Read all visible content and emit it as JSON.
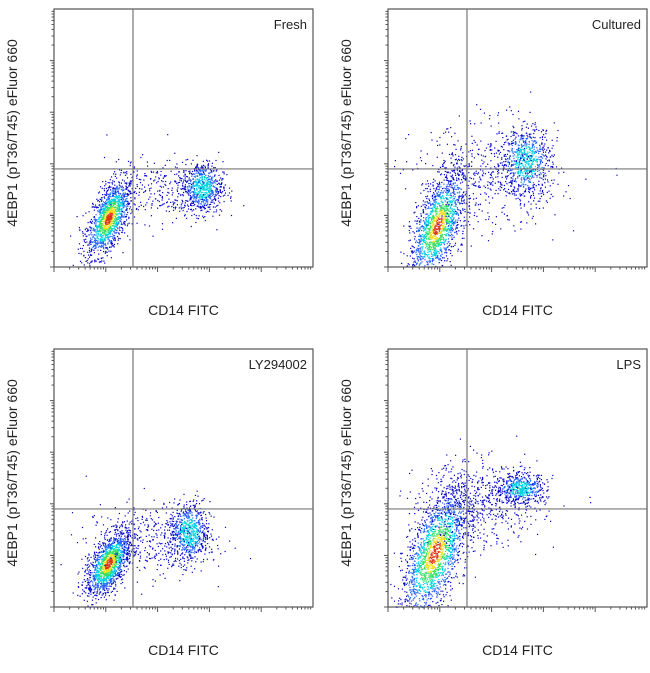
{
  "chart_data": [
    {
      "type": "scatter",
      "title": "Fresh",
      "xlabel": "CD14 FITC",
      "ylabel": "4EBP1 (pT36/T45) eFluor 660",
      "xscale": "log",
      "yscale": "log",
      "xlim": [
        0,
        100
      ],
      "ylim": [
        0,
        100
      ],
      "grid": false,
      "gates": {
        "x": 30.5,
        "y": 38
      },
      "populations": [
        {
          "x": 21,
          "y": 19,
          "sx": 4,
          "sy": 7,
          "n": 1400
        },
        {
          "x": 57,
          "y": 31,
          "sx": 4,
          "sy": 5,
          "n": 700
        },
        {
          "x": 40,
          "y": 30,
          "sx": 10,
          "sy": 6,
          "n": 250
        }
      ]
    },
    {
      "type": "scatter",
      "title": "Cultured",
      "xlabel": "CD14 FITC",
      "ylabel": "4EBP1 (pT36/T45) eFluor 660",
      "xscale": "log",
      "yscale": "log",
      "xlim": [
        0,
        100
      ],
      "ylim": [
        0,
        100
      ],
      "grid": false,
      "gates": {
        "x": 30.5,
        "y": 38
      },
      "populations": [
        {
          "x": 19,
          "y": 16,
          "sx": 5,
          "sy": 10,
          "n": 1500
        },
        {
          "x": 53,
          "y": 41,
          "sx": 5,
          "sy": 7,
          "n": 700
        },
        {
          "x": 38,
          "y": 35,
          "sx": 14,
          "sy": 10,
          "n": 500
        }
      ]
    },
    {
      "type": "scatter",
      "title": "LY294002",
      "xlabel": "CD14 FITC",
      "ylabel": "4EBP1 (pT36/T45) eFluor 660",
      "xscale": "log",
      "yscale": "log",
      "xlim": [
        0,
        100
      ],
      "ylim": [
        0,
        100
      ],
      "grid": false,
      "gates": {
        "x": 30.5,
        "y": 38
      },
      "populations": [
        {
          "x": 21,
          "y": 17,
          "sx": 4,
          "sy": 6,
          "n": 1400
        },
        {
          "x": 52,
          "y": 29,
          "sx": 4,
          "sy": 6,
          "n": 700
        },
        {
          "x": 36,
          "y": 26,
          "sx": 12,
          "sy": 7,
          "n": 350
        }
      ]
    },
    {
      "type": "scatter",
      "title": "LPS",
      "xlabel": "CD14 FITC",
      "ylabel": "4EBP1 (pT36/T45) eFluor 660",
      "xscale": "log",
      "yscale": "log",
      "xlim": [
        0,
        100
      ],
      "ylim": [
        0,
        100
      ],
      "grid": false,
      "gates": {
        "x": 30.5,
        "y": 38
      },
      "populations": [
        {
          "x": 18,
          "y": 21,
          "sx": 6,
          "sy": 12,
          "n": 1800
        },
        {
          "x": 51,
          "y": 46,
          "sx": 5,
          "sy": 3,
          "n": 500
        },
        {
          "x": 35,
          "y": 40,
          "sx": 12,
          "sy": 8,
          "n": 600
        }
      ]
    }
  ],
  "colors": {
    "gate": "#777777",
    "frame": "#555555",
    "density": [
      "#0000c8",
      "#2060ff",
      "#00d0e0",
      "#30e060",
      "#f0e020",
      "#e03010"
    ]
  }
}
